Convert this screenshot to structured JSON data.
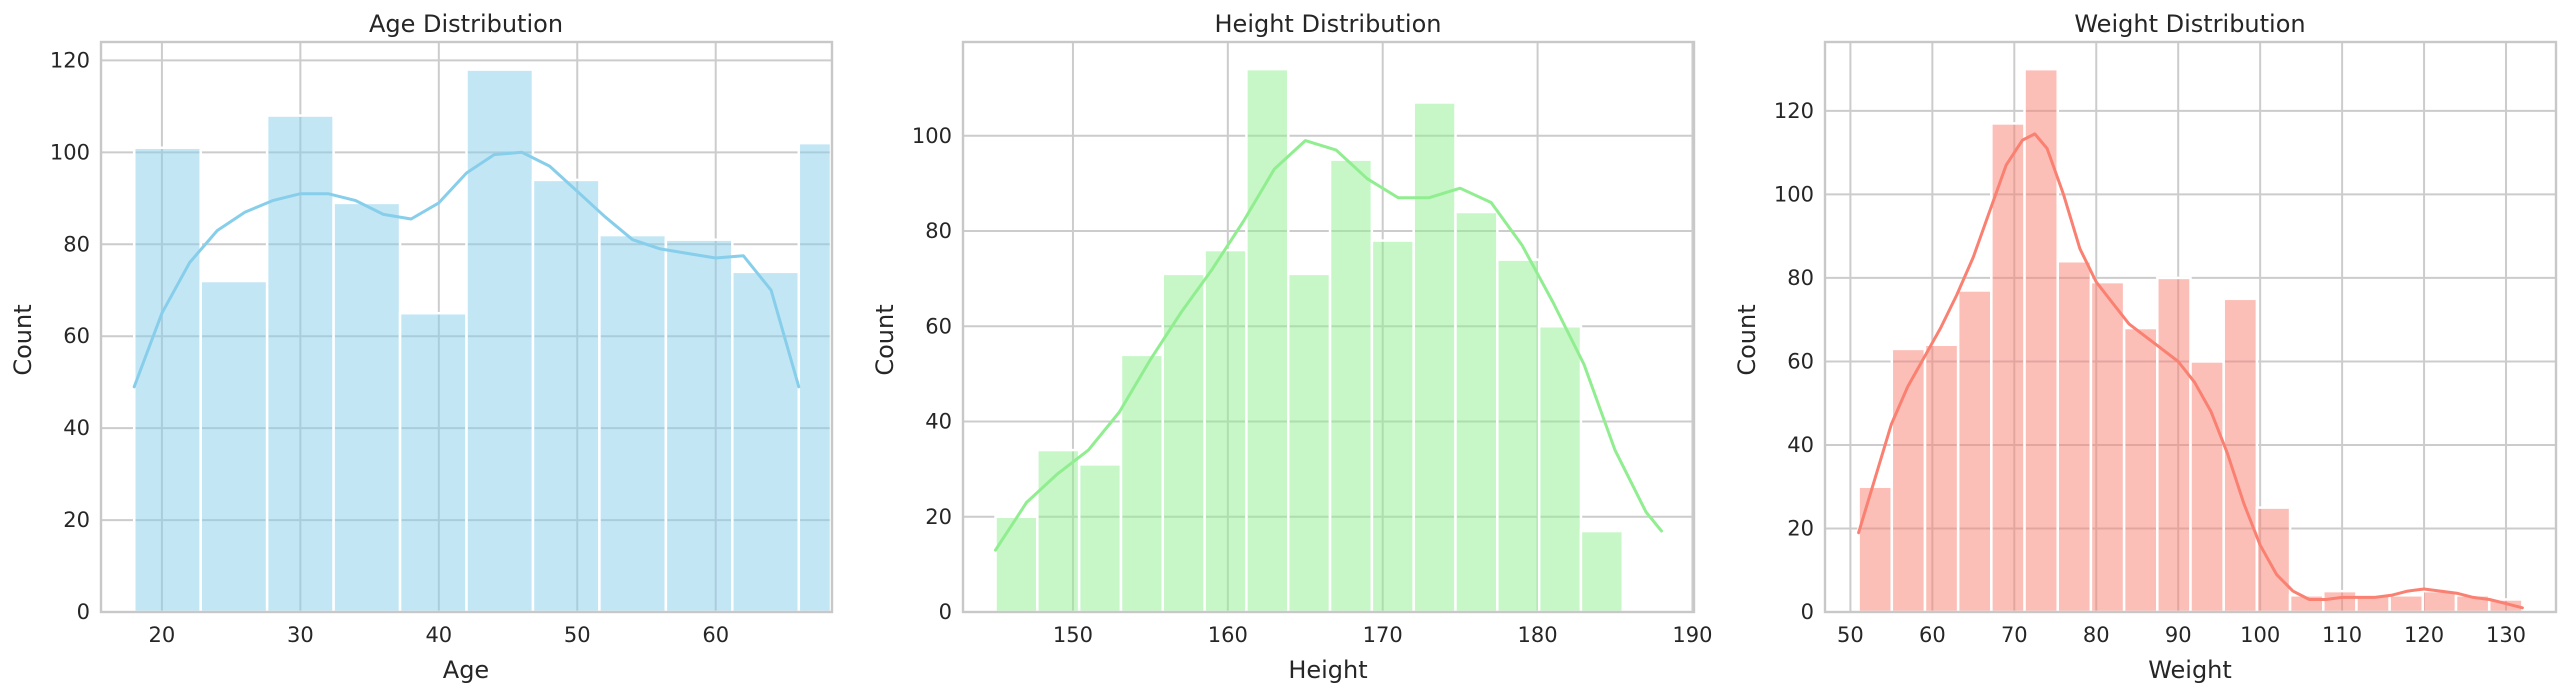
{
  "chart_data": [
    {
      "type": "bar",
      "subtype": "histogram",
      "title": "Age Distribution",
      "xlabel": "Age",
      "ylabel": "Count",
      "color": "#87ceeb",
      "bar_opacity": 0.5,
      "grid": true,
      "xlim": [
        15.6,
        68.4
      ],
      "ylim": [
        0,
        124
      ],
      "xticks": [
        20,
        30,
        40,
        50,
        60
      ],
      "yticks": [
        0,
        20,
        40,
        60,
        80,
        100,
        120
      ],
      "bins": [
        {
          "x0": 18.0,
          "x1": 22.8,
          "count": 101
        },
        {
          "x0": 22.8,
          "x1": 27.6,
          "count": 72
        },
        {
          "x0": 27.6,
          "x1": 32.4,
          "count": 108
        },
        {
          "x0": 32.4,
          "x1": 37.2,
          "count": 89
        },
        {
          "x0": 37.2,
          "x1": 42.0,
          "count": 65
        },
        {
          "x0": 42.0,
          "x1": 46.8,
          "count": 118
        },
        {
          "x0": 46.8,
          "x1": 51.6,
          "count": 94
        },
        {
          "x0": 51.6,
          "x1": 56.4,
          "count": 82
        },
        {
          "x0": 56.4,
          "x1": 61.2,
          "count": 81
        },
        {
          "x0": 61.2,
          "x1": 66.0,
          "count": 74
        },
        {
          "x0": 66.0,
          "x1": 70.8,
          "count": 102
        }
      ],
      "kde": {
        "x": [
          18,
          20,
          22,
          24,
          26,
          28,
          30,
          32,
          34,
          36,
          38,
          40,
          42,
          44,
          46,
          48,
          50,
          52,
          54,
          56,
          58,
          60,
          62,
          64,
          66
        ],
        "y": [
          49,
          65,
          76,
          83,
          87,
          89.5,
          91,
          91,
          89.5,
          86.5,
          85.5,
          89,
          95.5,
          99.5,
          100,
          97,
          91.5,
          86,
          81,
          79,
          78,
          77,
          77.5,
          70,
          49
        ]
      }
    },
    {
      "type": "bar",
      "subtype": "histogram",
      "title": "Height Distribution",
      "xlabel": "Height",
      "ylabel": "Count",
      "color": "#90ee90",
      "bar_opacity": 0.5,
      "grid": true,
      "xlim": [
        142.9,
        190.1
      ],
      "ylim": [
        0,
        119.7
      ],
      "xticks": [
        150,
        160,
        170,
        180,
        190
      ],
      "yticks": [
        0,
        20,
        40,
        60,
        80,
        100
      ],
      "bins": [
        {
          "x0": 145.0,
          "x1": 147.7,
          "count": 20
        },
        {
          "x0": 147.7,
          "x1": 150.4,
          "count": 34
        },
        {
          "x0": 150.4,
          "x1": 153.1,
          "count": 31
        },
        {
          "x0": 153.1,
          "x1": 155.8,
          "count": 54
        },
        {
          "x0": 155.8,
          "x1": 158.5,
          "count": 71
        },
        {
          "x0": 158.5,
          "x1": 161.2,
          "count": 76
        },
        {
          "x0": 161.2,
          "x1": 163.9,
          "count": 114
        },
        {
          "x0": 163.9,
          "x1": 166.6,
          "count": 71
        },
        {
          "x0": 166.6,
          "x1": 169.3,
          "count": 95
        },
        {
          "x0": 169.3,
          "x1": 172.0,
          "count": 78
        },
        {
          "x0": 172.0,
          "x1": 174.7,
          "count": 107
        },
        {
          "x0": 174.7,
          "x1": 177.4,
          "count": 84
        },
        {
          "x0": 177.4,
          "x1": 180.1,
          "count": 74
        },
        {
          "x0": 180.1,
          "x1": 182.8,
          "count": 60
        },
        {
          "x0": 182.8,
          "x1": 185.5,
          "count": 17
        }
      ],
      "kde": {
        "x": [
          145,
          147,
          149,
          151,
          153,
          155,
          157,
          159,
          161,
          163,
          165,
          167,
          169,
          171,
          173,
          175,
          177,
          179,
          181,
          183,
          185,
          187,
          188
        ],
        "y": [
          13,
          23,
          29,
          34,
          42,
          53,
          63,
          72,
          82,
          93,
          99,
          97,
          91,
          87,
          87,
          89,
          86,
          77,
          65,
          52,
          34,
          21,
          17
        ]
      }
    },
    {
      "type": "bar",
      "subtype": "histogram",
      "title": "Weight Distribution",
      "xlabel": "Weight",
      "ylabel": "Count",
      "color": "#fa8072",
      "bar_opacity": 0.5,
      "grid": true,
      "xlim": [
        46.9,
        136.1
      ],
      "ylim": [
        0,
        136.5
      ],
      "xticks": [
        50,
        60,
        70,
        80,
        90,
        100,
        110,
        120,
        130
      ],
      "yticks": [
        0,
        20,
        40,
        60,
        80,
        100,
        120
      ],
      "bins": [
        {
          "x0": 51.0,
          "x1": 55.05,
          "count": 30
        },
        {
          "x0": 55.05,
          "x1": 59.1,
          "count": 63
        },
        {
          "x0": 59.1,
          "x1": 63.15,
          "count": 64
        },
        {
          "x0": 63.15,
          "x1": 67.2,
          "count": 77
        },
        {
          "x0": 67.2,
          "x1": 71.25,
          "count": 117
        },
        {
          "x0": 71.25,
          "x1": 75.3,
          "count": 130
        },
        {
          "x0": 75.3,
          "x1": 79.35,
          "count": 84
        },
        {
          "x0": 79.35,
          "x1": 83.4,
          "count": 79
        },
        {
          "x0": 83.4,
          "x1": 87.45,
          "count": 68
        },
        {
          "x0": 87.45,
          "x1": 91.5,
          "count": 80
        },
        {
          "x0": 91.5,
          "x1": 95.55,
          "count": 60
        },
        {
          "x0": 95.55,
          "x1": 99.6,
          "count": 75
        },
        {
          "x0": 99.6,
          "x1": 103.65,
          "count": 25
        },
        {
          "x0": 103.65,
          "x1": 107.7,
          "count": 4
        },
        {
          "x0": 107.7,
          "x1": 111.75,
          "count": 5
        },
        {
          "x0": 111.75,
          "x1": 115.8,
          "count": 4
        },
        {
          "x0": 115.8,
          "x1": 119.85,
          "count": 4
        },
        {
          "x0": 119.85,
          "x1": 123.9,
          "count": 5
        },
        {
          "x0": 123.9,
          "x1": 127.95,
          "count": 4
        },
        {
          "x0": 127.95,
          "x1": 132.0,
          "count": 3
        }
      ],
      "kde": {
        "x": [
          51,
          53,
          55,
          57,
          59,
          61,
          63,
          65,
          67,
          69,
          71,
          72.5,
          74,
          76,
          78,
          80,
          82,
          84,
          86,
          88,
          90,
          92,
          94,
          96,
          98,
          100,
          102,
          104,
          106,
          108,
          110,
          112,
          114,
          116,
          118,
          120,
          122,
          124,
          126,
          128,
          130,
          132
        ],
        "y": [
          19,
          32,
          45,
          54,
          61,
          68,
          76,
          85,
          96,
          107,
          113,
          114.5,
          111,
          100,
          87,
          79,
          74,
          69,
          66,
          63,
          60,
          55,
          48,
          38,
          26,
          16,
          9,
          5,
          3,
          3,
          3.5,
          3.5,
          3.5,
          4,
          5,
          5.5,
          5,
          4.5,
          3.5,
          3,
          2,
          1
        ]
      }
    }
  ]
}
